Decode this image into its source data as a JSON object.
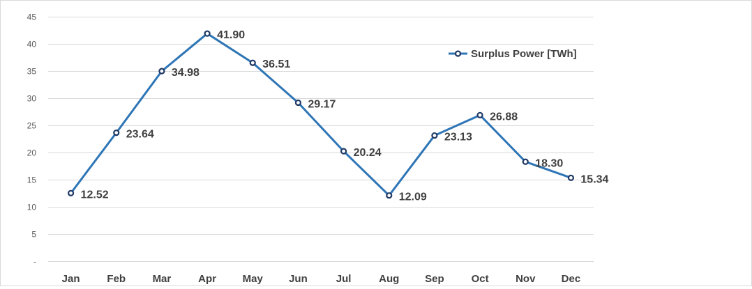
{
  "chart_data": {
    "type": "line",
    "title": "",
    "xlabel": "",
    "ylabel": "",
    "categories": [
      "Jan",
      "Feb",
      "Mar",
      "Apr",
      "May",
      "Jun",
      "Jul",
      "Aug",
      "Sep",
      "Oct",
      "Nov",
      "Dec"
    ],
    "series": [
      {
        "name": "Surplus Power [TWh]",
        "values": [
          12.52,
          23.64,
          34.98,
          41.9,
          36.51,
          29.17,
          20.24,
          12.09,
          23.13,
          26.88,
          18.3,
          15.34
        ],
        "data_labels": [
          "12.52",
          "23.64",
          "34.98",
          "41.90",
          "36.51",
          "29.17",
          "20.24",
          "12.09",
          "23.13",
          "26.88",
          "18.30",
          "15.34"
        ],
        "color": "#2e75b6",
        "marker_color": "#1f3864"
      }
    ],
    "ylim": [
      0,
      45
    ],
    "yticks": [
      0,
      5,
      10,
      15,
      20,
      25,
      30,
      35,
      40,
      45
    ],
    "ytick_labels": [
      "-",
      "5",
      "10",
      "15",
      "20",
      "25",
      "30",
      "35",
      "40",
      "45"
    ],
    "grid": true,
    "legend_position": "top-right"
  }
}
